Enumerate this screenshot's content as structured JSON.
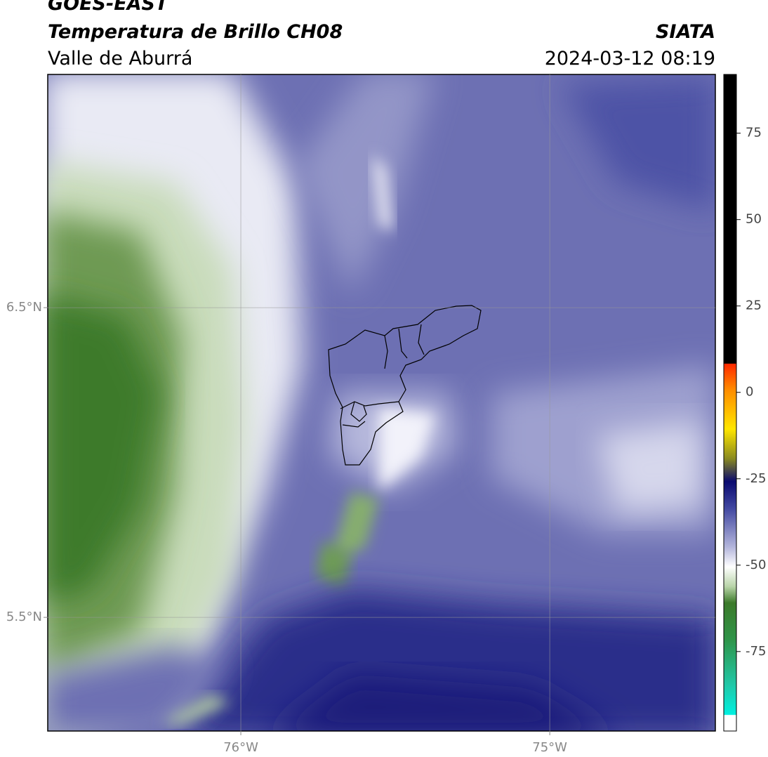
{
  "header": {
    "title": "GOES-EAST",
    "subtitle": "Temperatura de Brillo CH08",
    "source": "SIATA",
    "region": "Valle de Aburrá",
    "datetime": "2024-03-12 08:19"
  },
  "map": {
    "xlim": [
      -76.625,
      -74.464
    ],
    "ylim": [
      5.133,
      7.253
    ],
    "xticks": [
      {
        "value": -76,
        "label": "76°W"
      },
      {
        "value": -75,
        "label": "75°W"
      }
    ],
    "yticks": [
      {
        "value": 6.5,
        "label": "6.5°N"
      },
      {
        "value": 5.5,
        "label": "5.5°N"
      }
    ],
    "grid": true
  },
  "colorbar": {
    "lim": [
      -98,
      92
    ],
    "ticks": [
      75,
      50,
      25,
      0,
      -25,
      -50,
      -75
    ]
  }
}
